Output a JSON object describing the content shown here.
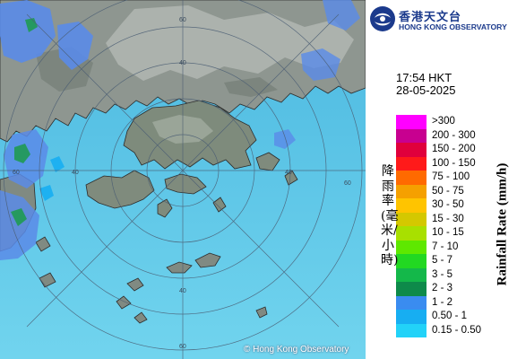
{
  "header": {
    "org_name_cn": "香港天文台",
    "org_name_en": "HONG KONG OBSERVATORY"
  },
  "timestamp": {
    "time": "17:54 HKT",
    "date": "28-05-2025"
  },
  "map": {
    "range_ring_labels": [
      "40",
      "40",
      "40",
      "40",
      "60",
      "60",
      "60",
      "60"
    ],
    "copyright": "© Hong Kong Observatory"
  },
  "legend": {
    "title_cn": "降雨率(毫米/小時)",
    "title_en": "Rainfall Rate (mm/h)",
    "items": [
      {
        "label": ">300",
        "color": "#ff00ff"
      },
      {
        "label": "200 - 300",
        "color": "#c80090"
      },
      {
        "label": "150 - 200",
        "color": "#e0003c"
      },
      {
        "label": "100 - 150",
        "color": "#ff1a1a"
      },
      {
        "label": "75 - 100",
        "color": "#ff6a00"
      },
      {
        "label": "50 - 75",
        "color": "#f5a000"
      },
      {
        "label": "30 - 50",
        "color": "#ffc400"
      },
      {
        "label": "15 - 30",
        "color": "#d4c800"
      },
      {
        "label": "10 - 15",
        "color": "#a8e000"
      },
      {
        "label": "7 - 10",
        "color": "#5ee800"
      },
      {
        "label": "5 - 7",
        "color": "#22d822"
      },
      {
        "label": "3 - 5",
        "color": "#14b84a"
      },
      {
        "label": "2 - 3",
        "color": "#0e8a4a"
      },
      {
        "label": "1 - 2",
        "color": "#3a8cf0"
      },
      {
        "label": "0.50 - 1",
        "color": "#17aef2"
      },
      {
        "label": "0.15 - 0.50",
        "color": "#22d2f8"
      }
    ]
  },
  "colors": {
    "sea": "#5cc4e6",
    "land": "#8c948e",
    "rain_light": "#5a8be8",
    "rain_moderate": "#1f9a52",
    "brand": "#1b3a8c"
  }
}
